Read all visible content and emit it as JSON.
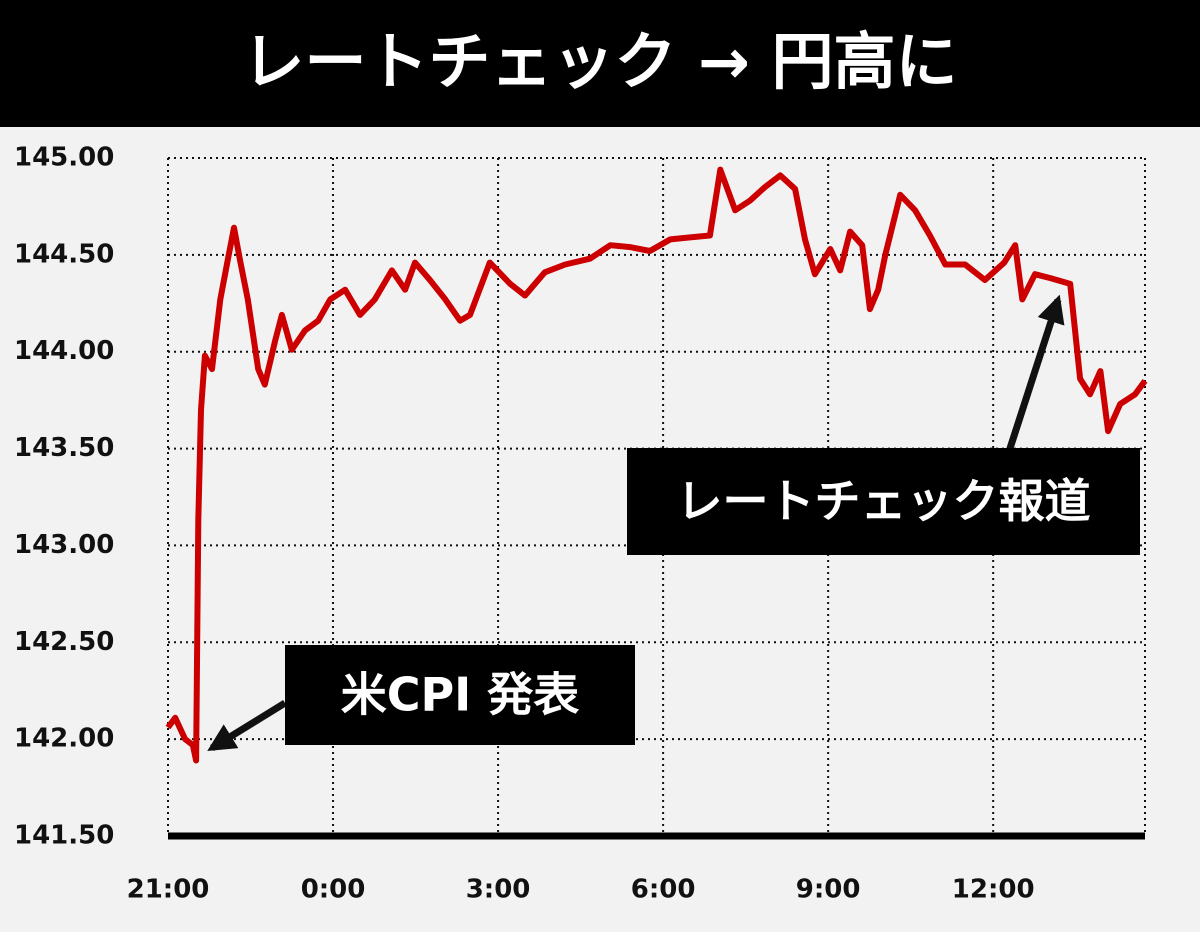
{
  "chart_data": {
    "type": "line",
    "title": "レートチェック → 円高に",
    "x": [
      0,
      0.13,
      0.31,
      0.45,
      0.51,
      0.55,
      0.6,
      0.67,
      0.8,
      0.95,
      1.09,
      1.2,
      1.31,
      1.45,
      1.64,
      1.76,
      1.95,
      2.07,
      2.25,
      2.49,
      2.73,
      2.95,
      3.22,
      3.49,
      3.76,
      4.07,
      4.31,
      4.49,
      4.76,
      5.04,
      5.31,
      5.49,
      5.85,
      6.22,
      6.49,
      6.85,
      7.22,
      7.67,
      8.04,
      8.4,
      8.76,
      9.13,
      9.49,
      9.85,
      10.04,
      10.31,
      10.58,
      10.85,
      11.13,
      11.4,
      11.58,
      11.76,
      12.04,
      12.22,
      12.4,
      12.62,
      12.76,
      12.91,
      13.04,
      13.31,
      13.58,
      13.85,
      14.13,
      14.49,
      14.85,
      15.2,
      15.4,
      15.53,
      15.76,
      16.04,
      16.4,
      16.58,
      16.76,
      16.95,
      17.09,
      17.31,
      17.58,
      17.76
    ],
    "series": [
      {
        "color": "#cc0000",
        "values": [
          142.06,
          142.11,
          142.0,
          141.97,
          141.89,
          143.13,
          143.7,
          143.98,
          143.91,
          144.27,
          144.48,
          144.64,
          144.47,
          144.27,
          143.91,
          143.83,
          144.06,
          144.19,
          144.01,
          144.11,
          144.16,
          144.27,
          144.32,
          144.19,
          144.27,
          144.42,
          144.32,
          144.46,
          144.37,
          144.27,
          144.16,
          144.19,
          144.46,
          144.35,
          144.29,
          144.41,
          144.45,
          144.48,
          144.55,
          144.54,
          144.52,
          144.58,
          144.59,
          144.6,
          144.94,
          144.73,
          144.78,
          144.85,
          144.91,
          144.84,
          144.58,
          144.4,
          144.53,
          144.42,
          144.62,
          144.55,
          144.22,
          144.32,
          144.5,
          144.81,
          144.73,
          144.6,
          144.45,
          144.45,
          144.37,
          144.46,
          144.55,
          144.27,
          144.4,
          144.38,
          144.35,
          143.86,
          143.78,
          143.9,
          143.59,
          143.73,
          143.78,
          143.85
        ]
      }
    ],
    "xlim": [
      0,
      17.76
    ],
    "xticks": [
      {
        "value": 0,
        "label": "21:00"
      },
      {
        "value": 3,
        "label": "0:00"
      },
      {
        "value": 6,
        "label": "3:00"
      },
      {
        "value": 9,
        "label": "6:00"
      },
      {
        "value": 12,
        "label": "9:00"
      },
      {
        "value": 15,
        "label": "12:00"
      }
    ],
    "ylim": [
      141.5,
      145
    ],
    "yticks": [
      {
        "value": 141.5,
        "label": "141.50"
      },
      {
        "value": 142,
        "label": "142.00"
      },
      {
        "value": 142.5,
        "label": "142.50"
      },
      {
        "value": 143,
        "label": "143.00"
      },
      {
        "value": 143.5,
        "label": "143.50"
      },
      {
        "value": 144,
        "label": "144.00"
      },
      {
        "value": 144.5,
        "label": "144.50"
      },
      {
        "value": 145,
        "label": "145.00"
      }
    ],
    "grid": true,
    "annotations": [
      {
        "text": "米CPI 発表"
      },
      {
        "text": "レートチェック報道"
      }
    ]
  }
}
